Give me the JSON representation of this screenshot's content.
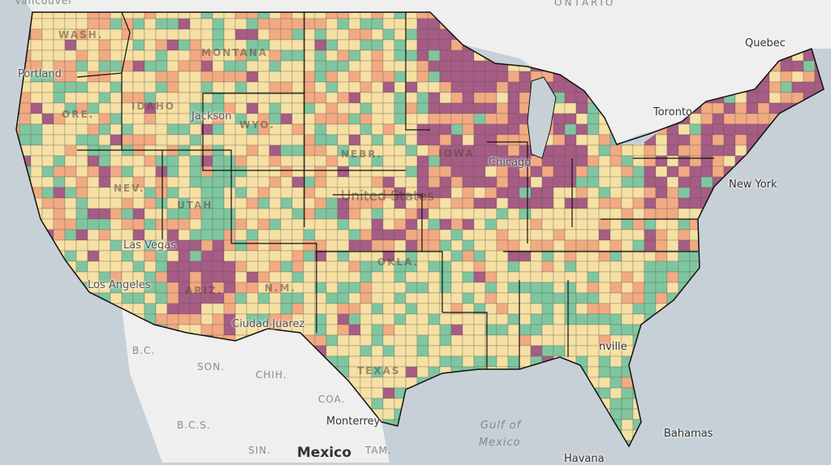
{
  "palette": {
    "low": "#7fc6a0",
    "mid_low": "#f6e0a4",
    "mid_high": "#f2aa82",
    "high": "#a65c84",
    "land": "#efefef",
    "water": "#c7d0d6",
    "border": "#111111"
  },
  "labels": {
    "ontario": "ONTARIO",
    "quebec": "Quebec",
    "toronto": "Toronto",
    "new_york": "New York",
    "portland": "Portland",
    "vancouver": "Vancouver",
    "montana": "MONTANA",
    "idaho": "IDAHO",
    "wyo": "WYO.",
    "jackson": "Jackson",
    "nev": "NEV.",
    "utah": "UTAH",
    "las_vegas": "Las Vegas",
    "los_angeles": "Los Angeles",
    "ariz": "ARIZ.",
    "nm": "N.M.",
    "ciudad_juarez": "Ciudad Juarez",
    "united_states": "United States",
    "chicago": "Chicago",
    "nebr": "NEBR.",
    "iowa": "IOWA",
    "okla": "OKLA.",
    "texas": "TEXAS",
    "wash": "WASH.",
    "ore": "ORE.",
    "bc": "B.C.",
    "son": "SON.",
    "chih": "CHIH.",
    "coa": "COA.",
    "bcs": "B.C.S.",
    "sin": "SIN.",
    "tam": "TAM.",
    "monterrey": "Monterrey",
    "mexico": "Mexico",
    "gulf1": "Gulf of",
    "gulf2": "Mexico",
    "bahamas": "Bahamas",
    "havana": "Havana",
    "jacksonville": "nville"
  }
}
